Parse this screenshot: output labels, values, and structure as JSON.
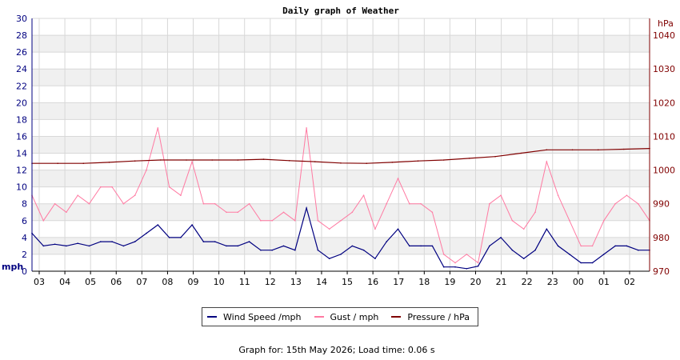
{
  "chart_data": {
    "type": "line",
    "title": "Daily graph of Weather",
    "y_left_label": "mph",
    "y_right_label": "hPa",
    "ylim_left": [
      0,
      30
    ],
    "ylim_right": [
      970,
      1045
    ],
    "y_left_ticks": [
      0,
      2,
      4,
      6,
      8,
      10,
      12,
      14,
      16,
      18,
      20,
      22,
      24,
      26,
      28,
      30
    ],
    "y_right_ticks": [
      970,
      980,
      990,
      1000,
      1010,
      1020,
      1030,
      1040
    ],
    "x_ticks": [
      "03",
      "04",
      "05",
      "06",
      "07",
      "08",
      "09",
      "10",
      "11",
      "12",
      "13",
      "14",
      "15",
      "16",
      "17",
      "18",
      "19",
      "20",
      "21",
      "22",
      "23",
      "00",
      "01",
      "02"
    ],
    "grid": true,
    "legend_position": "bottom",
    "series": [
      {
        "name": "Wind Speed /mph",
        "color": "#000080",
        "axis": "left",
        "values": [
          4.5,
          3.0,
          3.2,
          3.0,
          3.3,
          3.0,
          3.5,
          3.5,
          3.0,
          3.5,
          4.5,
          5.5,
          4.0,
          4.0,
          5.5,
          3.5,
          3.5,
          3.0,
          3.0,
          3.5,
          2.5,
          2.5,
          3.0,
          2.5,
          7.5,
          2.5,
          1.5,
          2.0,
          3.0,
          2.5,
          1.5,
          3.5,
          5.0,
          3.0,
          3.0,
          3.0,
          0.5,
          0.5,
          0.3,
          0.6,
          3.0,
          4.0,
          2.5,
          1.5,
          2.5,
          5.0,
          3.0,
          2.0,
          1.0,
          1.0,
          2.0,
          3.0,
          3.0,
          2.5,
          2.5
        ]
      },
      {
        "name": "Gust / mph",
        "color": "#ff7aa2",
        "axis": "left",
        "values": [
          9,
          6,
          8,
          7,
          9,
          8,
          10,
          10,
          8,
          9,
          12,
          17,
          10,
          9,
          13,
          8,
          8,
          7,
          7,
          8,
          6,
          6,
          7,
          6,
          17,
          6,
          5,
          6,
          7,
          9,
          5,
          8,
          11,
          8,
          8,
          7,
          2,
          1,
          2,
          1,
          8,
          9,
          6,
          5,
          7,
          13,
          9,
          6,
          3,
          3,
          6,
          8,
          9,
          8,
          6
        ]
      },
      {
        "name": "Pressure / hPa",
        "color": "#800000",
        "axis": "right",
        "values": [
          1002,
          1002,
          1002,
          1002.3,
          1002.7,
          1003,
          1003,
          1003,
          1003,
          1003.2,
          1002.8,
          1002.5,
          1002.1,
          1002,
          1002.3,
          1002.7,
          1003,
          1003.5,
          1004,
          1005,
          1006,
          1006,
          1006,
          1006.2,
          1006.4
        ]
      }
    ]
  },
  "legend": {
    "wind": "Wind Speed /mph",
    "gust": "Gust / mph",
    "pressure": "Pressure / hPa"
  },
  "footer": "Graph for: 15th May 2026; Load time: 0.06 s"
}
